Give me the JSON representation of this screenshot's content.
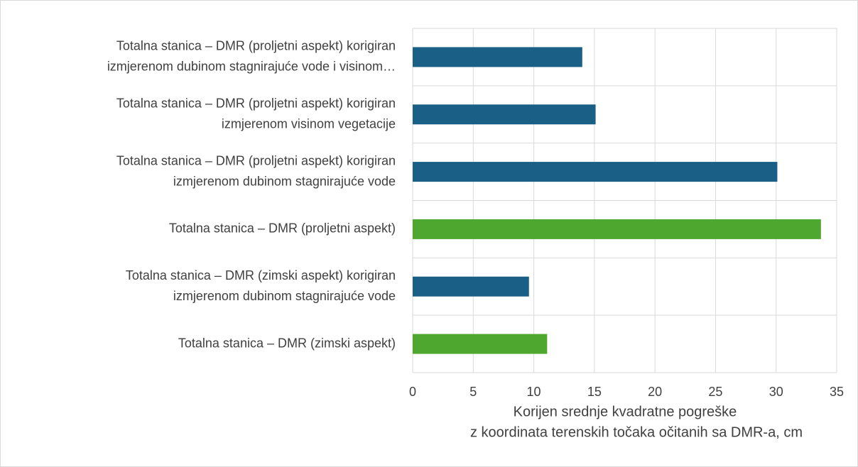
{
  "chart_data": {
    "type": "bar",
    "orientation": "horizontal",
    "categories": [
      [
        "Totalna stanica – DMR (proljetni aspekt) korigiran",
        "izmjerenom dubinom stagnirajuće vode i visinom…"
      ],
      [
        "Totalna stanica – DMR (proljetni aspekt) korigiran",
        "izmjerenom visinom vegetacije"
      ],
      [
        "Totalna stanica – DMR (proljetni aspekt) korigiran",
        "izmjerenom dubinom stagnirajuće vode"
      ],
      [
        "Totalna stanica – DMR (proljetni aspekt)"
      ],
      [
        "Totalna stanica – DMR (zimski aspekt) korigiran",
        "izmjerenom dubinom stagnirajuće vode"
      ],
      [
        "Totalna stanica – DMR (zimski aspekt)"
      ]
    ],
    "values": [
      14.0,
      15.1,
      30.1,
      33.7,
      9.6,
      11.1
    ],
    "colors": [
      "#1a5f85",
      "#1a5f85",
      "#1a5f85",
      "#4ea72e",
      "#1a5f85",
      "#4ea72e"
    ],
    "xlabel": [
      "Korijen srednje kvadratne pogreške",
      "z koordinata terenskih točaka očitanih sa DMR-a, cm"
    ],
    "xlim": [
      0,
      35
    ],
    "xticks": [
      0,
      5,
      10,
      15,
      20,
      25,
      30,
      35
    ],
    "grid": true
  }
}
